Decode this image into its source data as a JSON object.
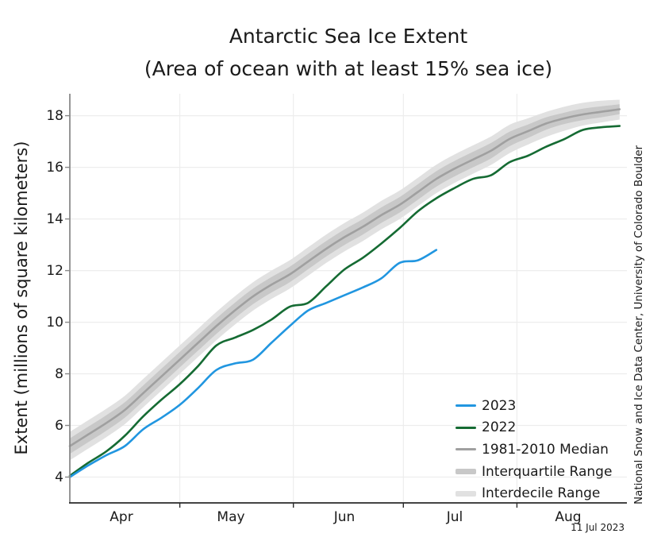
{
  "page": {
    "date_stamp": "11 Jul 2023",
    "credit": "National Snow and Ice Data Center, University of Colorado Boulder"
  },
  "chart_data": {
    "type": "line",
    "title": "Antarctic Sea Ice Extent",
    "subtitle": "(Area of ocean with at least 15% sea ice)",
    "xlabel": "",
    "ylabel": "Extent (millions of square kilometers)",
    "x_unit": "days since Apr 1",
    "xlim": [
      0,
      152
    ],
    "ylim": [
      3.0,
      18.85
    ],
    "yticks": [
      4,
      6,
      8,
      10,
      12,
      14,
      16,
      18
    ],
    "grid": true,
    "legend_position": "inside lower right",
    "month_tick_days": [
      30,
      61,
      91,
      122
    ],
    "month_labels": [
      {
        "label": "Apr",
        "day": 14
      },
      {
        "label": "May",
        "day": 44
      },
      {
        "label": "Jun",
        "day": 75
      },
      {
        "label": "Jul",
        "day": 105
      },
      {
        "label": "Aug",
        "day": 136
      }
    ],
    "series": [
      {
        "name": "2023",
        "color": "#2196e0",
        "days": [
          0,
          5,
          10,
          15,
          20,
          25,
          30,
          35,
          40,
          45,
          50,
          55,
          60,
          65,
          70,
          75,
          80,
          85,
          90,
          95,
          100
        ],
        "values": [
          4.0,
          4.45,
          4.85,
          5.2,
          5.85,
          6.3,
          6.8,
          7.45,
          8.15,
          8.4,
          8.55,
          9.2,
          9.85,
          10.45,
          10.75,
          11.05,
          11.35,
          11.7,
          12.3,
          12.4,
          12.8
        ]
      },
      {
        "name": "2022",
        "color": "#156b33",
        "days": [
          0,
          5,
          10,
          15,
          20,
          25,
          30,
          35,
          40,
          45,
          50,
          55,
          60,
          65,
          70,
          75,
          80,
          85,
          90,
          95,
          100,
          105,
          110,
          115,
          120,
          125,
          130,
          135,
          140,
          145,
          150
        ],
        "values": [
          4.05,
          4.55,
          5.0,
          5.6,
          6.35,
          7.0,
          7.6,
          8.3,
          9.1,
          9.4,
          9.7,
          10.1,
          10.6,
          10.75,
          11.4,
          12.05,
          12.5,
          13.05,
          13.65,
          14.3,
          14.8,
          15.2,
          15.55,
          15.7,
          16.2,
          16.45,
          16.8,
          17.1,
          17.45,
          17.55,
          17.6
        ]
      },
      {
        "name": "1981-2010 Median",
        "color": "#a0a0a0",
        "days": [
          0,
          5,
          10,
          15,
          20,
          25,
          30,
          35,
          40,
          45,
          50,
          55,
          60,
          65,
          70,
          75,
          80,
          85,
          90,
          95,
          100,
          105,
          110,
          115,
          120,
          125,
          130,
          135,
          140,
          145,
          150
        ],
        "values": [
          5.2,
          5.65,
          6.1,
          6.6,
          7.25,
          7.9,
          8.55,
          9.2,
          9.85,
          10.45,
          11.0,
          11.45,
          11.85,
          12.35,
          12.85,
          13.3,
          13.7,
          14.15,
          14.55,
          15.05,
          15.55,
          15.95,
          16.3,
          16.65,
          17.1,
          17.4,
          17.7,
          17.9,
          18.05,
          18.15,
          18.25
        ]
      }
    ],
    "bands": [
      {
        "name": "Interdecile Range",
        "color": "#e1e1e1",
        "days": [
          0,
          5,
          10,
          15,
          20,
          25,
          30,
          35,
          40,
          45,
          50,
          55,
          60,
          65,
          70,
          75,
          80,
          85,
          90,
          95,
          100,
          105,
          110,
          115,
          120,
          125,
          130,
          135,
          140,
          145,
          150
        ],
        "upper": [
          5.75,
          6.2,
          6.65,
          7.15,
          7.8,
          8.45,
          9.1,
          9.75,
          10.4,
          11.0,
          11.55,
          12.0,
          12.4,
          12.9,
          13.4,
          13.85,
          14.25,
          14.7,
          15.1,
          15.6,
          16.1,
          16.5,
          16.85,
          17.2,
          17.65,
          17.9,
          18.15,
          18.35,
          18.5,
          18.58,
          18.62
        ],
        "lower": [
          4.65,
          5.1,
          5.55,
          6.05,
          6.7,
          7.35,
          8.0,
          8.65,
          9.3,
          9.9,
          10.45,
          10.9,
          11.3,
          11.8,
          12.3,
          12.75,
          13.15,
          13.6,
          14.0,
          14.5,
          15.0,
          15.4,
          15.75,
          16.1,
          16.55,
          16.88,
          17.18,
          17.42,
          17.62,
          17.74,
          17.85
        ]
      },
      {
        "name": "Interquartile Range",
        "color": "#c8c8c8",
        "days": [
          0,
          5,
          10,
          15,
          20,
          25,
          30,
          35,
          40,
          45,
          50,
          55,
          60,
          65,
          70,
          75,
          80,
          85,
          90,
          95,
          100,
          105,
          110,
          115,
          120,
          125,
          130,
          135,
          140,
          145,
          150
        ],
        "upper": [
          5.5,
          5.95,
          6.4,
          6.9,
          7.55,
          8.2,
          8.85,
          9.5,
          10.15,
          10.75,
          11.3,
          11.75,
          12.15,
          12.65,
          13.15,
          13.6,
          14.0,
          14.45,
          14.85,
          15.35,
          15.85,
          16.25,
          16.6,
          16.95,
          17.38,
          17.66,
          17.94,
          18.12,
          18.27,
          18.36,
          18.44
        ],
        "lower": [
          4.9,
          5.35,
          5.8,
          6.3,
          6.95,
          7.6,
          8.25,
          8.9,
          9.55,
          10.15,
          10.7,
          11.15,
          11.55,
          12.05,
          12.55,
          13.0,
          13.4,
          13.85,
          14.25,
          14.75,
          15.25,
          15.65,
          16.0,
          16.35,
          16.82,
          17.14,
          17.46,
          17.68,
          17.83,
          17.94,
          18.06
        ]
      }
    ],
    "legend": [
      {
        "label": "2023",
        "swatch": "line",
        "color": "#2196e0"
      },
      {
        "label": "2022",
        "swatch": "line",
        "color": "#156b33"
      },
      {
        "label": "1981-2010 Median",
        "swatch": "line",
        "color": "#a0a0a0"
      },
      {
        "label": "Interquartile Range",
        "swatch": "band",
        "color": "#c8c8c8"
      },
      {
        "label": "Interdecile Range",
        "swatch": "band",
        "color": "#e1e1e1"
      }
    ],
    "colors": {
      "gridline": "#ededed",
      "left_spine": "#8a8a8a",
      "bottom_spine": "#2a2a2a",
      "text": "#1a1a1a"
    }
  }
}
